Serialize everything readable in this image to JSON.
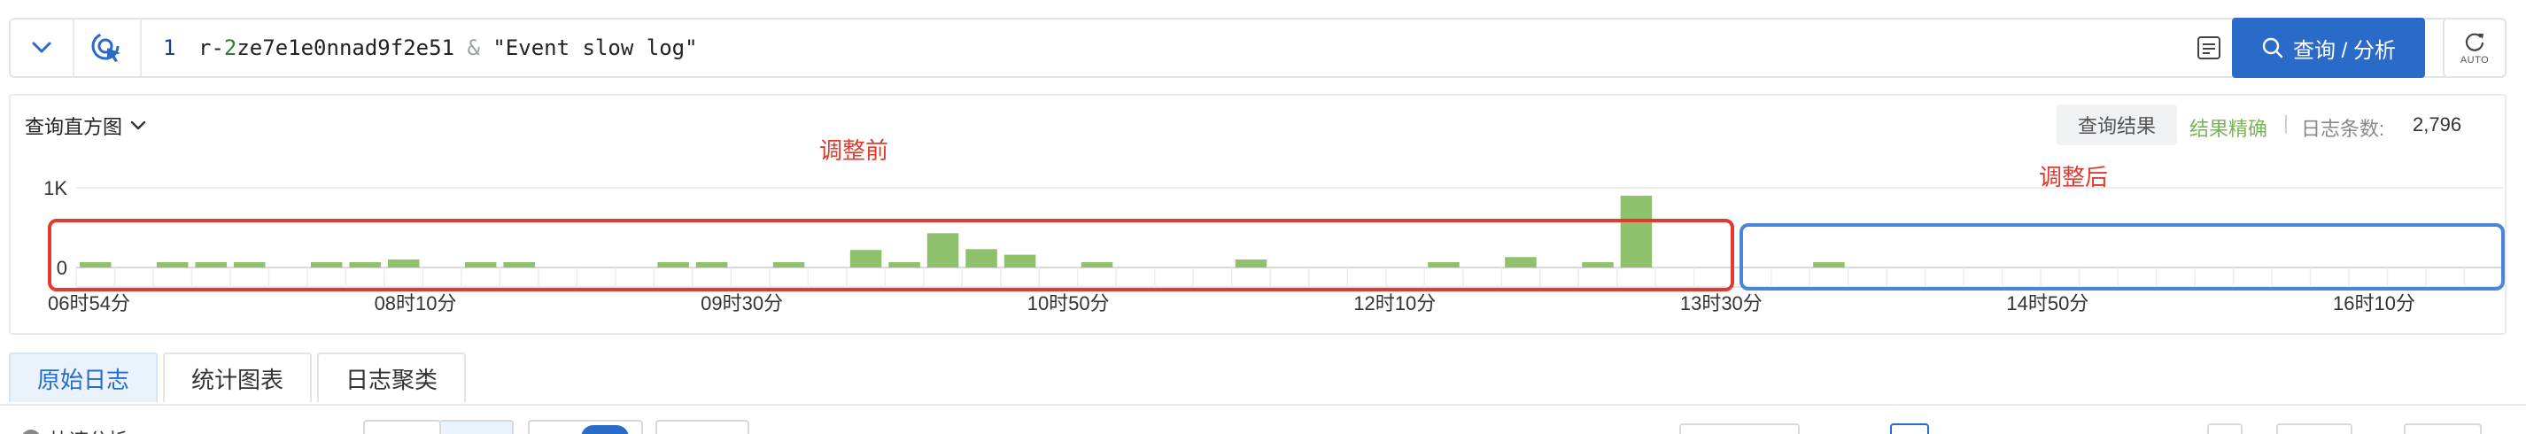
{
  "query": {
    "line_number": "1",
    "code_prefix": "r-",
    "code_num": "2",
    "code_mid": "ze7e1e0nnad9f2e51 ",
    "code_op": "&",
    "code_suffix": " \"Event slow log\"",
    "search_button": "查询 / 分析",
    "auto_label": "AUTO"
  },
  "histogram": {
    "title": "查询直方图",
    "result_tab": "查询结果",
    "exact_text": "结果精确",
    "separator": "|",
    "log_count_label": "日志条数:",
    "log_count_value": "2,796"
  },
  "annotations": {
    "before": "调整前",
    "after": "调整后",
    "before_box_color": "#e23a2e",
    "after_box_color": "#4a86d6"
  },
  "chart_data": {
    "type": "bar",
    "y_tick_labels": [
      "1K",
      "0"
    ],
    "ylim": [
      0,
      1000
    ],
    "x_tick_labels": [
      "06时54分",
      "08时10分",
      "09时30分",
      "10时50分",
      "12时10分",
      "13时30分",
      "14时50分",
      "16时10分"
    ],
    "bar_color": "#8fc06c",
    "values": [
      25,
      0,
      25,
      25,
      25,
      0,
      25,
      25,
      100,
      0,
      25,
      25,
      0,
      0,
      0,
      25,
      25,
      0,
      25,
      0,
      220,
      25,
      430,
      230,
      160,
      0,
      25,
      0,
      0,
      0,
      100,
      0,
      0,
      0,
      0,
      25,
      0,
      130,
      0,
      25,
      900,
      0,
      0,
      0,
      0,
      40,
      0,
      0,
      0,
      0,
      0,
      0,
      0,
      0,
      0,
      0,
      0,
      0,
      0,
      0,
      0,
      0,
      0
    ],
    "grid": true
  },
  "tabs": [
    "原始日志",
    "统计图表",
    "日志聚类"
  ],
  "bottom": {
    "fast_analysis": "快速分析"
  }
}
